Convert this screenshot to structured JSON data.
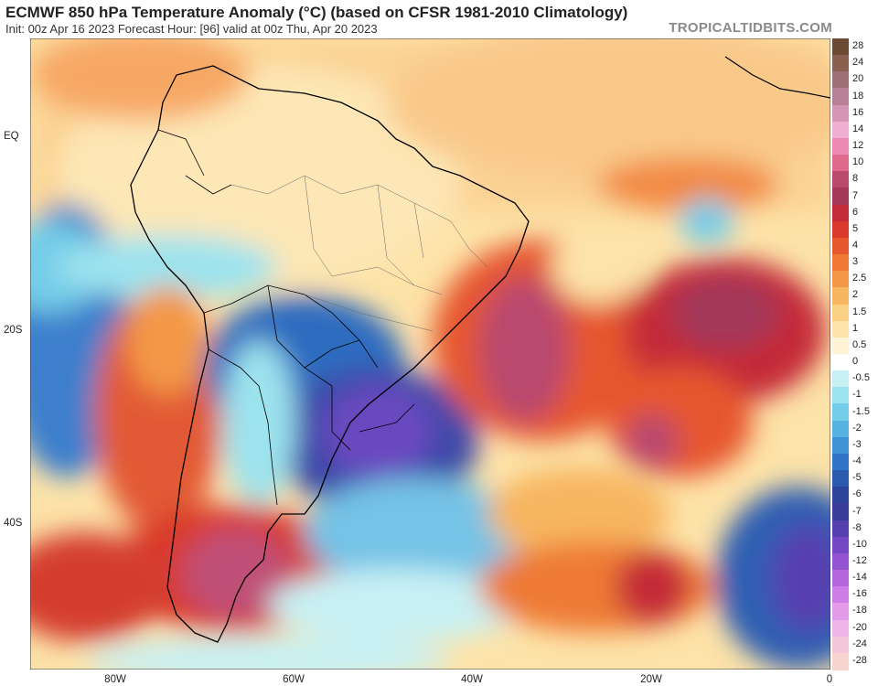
{
  "header": {
    "title": "ECMWF 850 hPa Temperature Anomaly (°C) (based on CFSR 1981-2010 Climatology)",
    "subtitle": "Init: 00z Apr 16 2023   Forecast Hour: [96]   valid at 00z Thu, Apr 20 2023",
    "watermark": "TROPICALTIDBITS.COM"
  },
  "map": {
    "lat_labels": [
      "EQ",
      "20S",
      "40S"
    ],
    "lon_labels": [
      "80W",
      "60W",
      "40W",
      "20W",
      "0"
    ]
  },
  "colorbar": {
    "levels": [
      {
        "label": "28",
        "color": "#6b4a33"
      },
      {
        "label": "24",
        "color": "#8a5f4f"
      },
      {
        "label": "20",
        "color": "#9e6f73"
      },
      {
        "label": "18",
        "color": "#b98095"
      },
      {
        "label": "16",
        "color": "#d596b6"
      },
      {
        "label": "14",
        "color": "#f1aed3"
      },
      {
        "label": "12",
        "color": "#ec8ab3"
      },
      {
        "label": "10",
        "color": "#df6a8e"
      },
      {
        "label": "8",
        "color": "#b94a6e"
      },
      {
        "label": "7",
        "color": "#a3385a"
      },
      {
        "label": "6",
        "color": "#c42a38"
      },
      {
        "label": "5",
        "color": "#d93a2b"
      },
      {
        "label": "4",
        "color": "#e6572d"
      },
      {
        "label": "3",
        "color": "#ee7a35"
      },
      {
        "label": "2.5",
        "color": "#f39846"
      },
      {
        "label": "2",
        "color": "#f7b660"
      },
      {
        "label": "1.5",
        "color": "#fad083"
      },
      {
        "label": "1",
        "color": "#fde3a8"
      },
      {
        "label": "0.5",
        "color": "#fff3d6"
      },
      {
        "label": "0",
        "color": "#ffffff"
      },
      {
        "label": "-0.5",
        "color": "#c8f1f4"
      },
      {
        "label": "-1",
        "color": "#9de3ee"
      },
      {
        "label": "-1.5",
        "color": "#74cde8"
      },
      {
        "label": "-2",
        "color": "#56b2e1"
      },
      {
        "label": "-3",
        "color": "#3d93d6"
      },
      {
        "label": "-4",
        "color": "#2f74c6"
      },
      {
        "label": "-5",
        "color": "#2a5aae"
      },
      {
        "label": "-6",
        "color": "#2c449a"
      },
      {
        "label": "-7",
        "color": "#3b3c9a"
      },
      {
        "label": "-8",
        "color": "#5640b0"
      },
      {
        "label": "-10",
        "color": "#7448c4"
      },
      {
        "label": "-12",
        "color": "#9453d1"
      },
      {
        "label": "-14",
        "color": "#b566dc"
      },
      {
        "label": "-16",
        "color": "#cf7de6"
      },
      {
        "label": "-18",
        "color": "#e39be9"
      },
      {
        "label": "-20",
        "color": "#eeb5e6"
      },
      {
        "label": "-24",
        "color": "#f3c6d8"
      },
      {
        "label": "-28",
        "color": "#f7d4d0"
      }
    ]
  }
}
